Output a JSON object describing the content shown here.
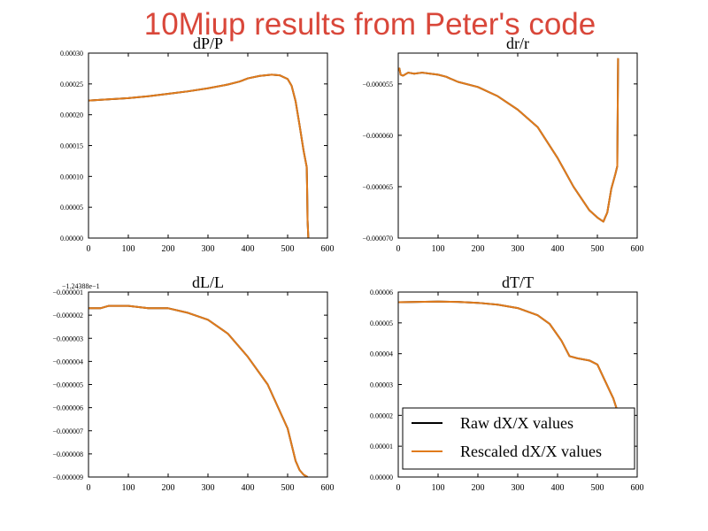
{
  "figure": {
    "suptitle": "10Miup results from Peter's code",
    "legend_placement": "lower-right of bottom-right panel",
    "colors": {
      "raw": "#000000",
      "rescaled": "#e07b1c",
      "suptitle": "#d9473a"
    }
  },
  "chart_data": [
    {
      "type": "line",
      "title": "dP/P",
      "xlabel": "",
      "ylabel": "",
      "xlim": [
        0,
        600
      ],
      "ylim": [
        0,
        0.0003
      ],
      "xticks": [
        0,
        100,
        200,
        300,
        400,
        500,
        600
      ],
      "xtick_labels": [
        "0",
        "100",
        "200",
        "300",
        "400",
        "500",
        "600"
      ],
      "yticks": [
        0,
        5e-05,
        0.0001,
        0.00015,
        0.0002,
        0.00025,
        0.0003
      ],
      "ytick_labels": [
        "0.00000",
        "0.00005",
        "0.00010",
        "0.00015",
        "0.00020",
        "0.00025",
        "0.00030"
      ],
      "offset_text": "",
      "grid": false,
      "series": [
        {
          "name": "Raw dX/X values",
          "x": [
            0,
            50,
            100,
            150,
            200,
            250,
            300,
            350,
            380,
            400,
            430,
            460,
            480,
            500,
            510,
            520,
            530,
            540,
            548,
            549,
            550,
            552
          ],
          "y": [
            0.000223,
            0.000225,
            0.000227,
            0.00023,
            0.000234,
            0.000238,
            0.000243,
            0.000249,
            0.000254,
            0.000259,
            0.000263,
            0.000265,
            0.000264,
            0.000258,
            0.000247,
            0.000222,
            0.000183,
            0.000142,
            0.000115,
            8e-05,
            3e-05,
            0
          ]
        },
        {
          "name": "Rescaled dX/X values",
          "x": [
            0,
            50,
            100,
            150,
            200,
            250,
            300,
            350,
            380,
            400,
            430,
            460,
            480,
            500,
            510,
            520,
            530,
            540,
            548,
            549,
            550,
            552
          ],
          "y": [
            0.000223,
            0.000225,
            0.000227,
            0.00023,
            0.000234,
            0.000238,
            0.000243,
            0.000249,
            0.000254,
            0.000259,
            0.000263,
            0.000265,
            0.000264,
            0.000258,
            0.000247,
            0.000222,
            0.000183,
            0.000142,
            0.000115,
            8e-05,
            3e-05,
            0
          ]
        }
      ]
    },
    {
      "type": "line",
      "title": "dr/r",
      "xlabel": "",
      "ylabel": "",
      "xlim": [
        0,
        600
      ],
      "ylim": [
        -7e-05,
        -5.2e-05
      ],
      "xticks": [
        0,
        100,
        200,
        300,
        400,
        500,
        600
      ],
      "xtick_labels": [
        "0",
        "100",
        "200",
        "300",
        "400",
        "500",
        "600"
      ],
      "yticks": [
        -7e-05,
        -6.5e-05,
        -6e-05,
        -5.5e-05
      ],
      "ytick_labels": [
        "−0.000070",
        "−0.000065",
        "−0.000060",
        "−0.000055"
      ],
      "offset_text": "",
      "grid": false,
      "series": [
        {
          "name": "Raw dX/X values",
          "x": [
            0,
            3,
            6,
            12,
            25,
            40,
            60,
            80,
            100,
            120,
            150,
            200,
            250,
            300,
            350,
            400,
            440,
            480,
            500,
            515,
            525,
            535,
            545,
            550,
            552
          ],
          "y": [
            -5.37e-05,
            -5.35e-05,
            -5.41e-05,
            -5.42e-05,
            -5.39e-05,
            -5.4e-05,
            -5.39e-05,
            -5.4e-05,
            -5.41e-05,
            -5.43e-05,
            -5.48e-05,
            -5.53e-05,
            -5.62e-05,
            -5.75e-05,
            -5.92e-05,
            -6.22e-05,
            -6.5e-05,
            -6.73e-05,
            -6.8e-05,
            -6.84e-05,
            -6.75e-05,
            -6.52e-05,
            -6.38e-05,
            -6.3e-05,
            -5.25e-05
          ]
        },
        {
          "name": "Rescaled dX/X values",
          "x": [
            0,
            3,
            6,
            12,
            25,
            40,
            60,
            80,
            100,
            120,
            150,
            200,
            250,
            300,
            350,
            400,
            440,
            480,
            500,
            515,
            525,
            535,
            545,
            550,
            552
          ],
          "y": [
            -5.37e-05,
            -5.35e-05,
            -5.41e-05,
            -5.42e-05,
            -5.39e-05,
            -5.4e-05,
            -5.39e-05,
            -5.4e-05,
            -5.41e-05,
            -5.43e-05,
            -5.48e-05,
            -5.53e-05,
            -5.62e-05,
            -5.75e-05,
            -5.92e-05,
            -6.22e-05,
            -6.5e-05,
            -6.73e-05,
            -6.8e-05,
            -6.84e-05,
            -6.75e-05,
            -6.52e-05,
            -6.38e-05,
            -6.3e-05,
            -5.25e-05
          ]
        }
      ]
    },
    {
      "type": "line",
      "title": "dL/L",
      "xlabel": "",
      "ylabel": "",
      "xlim": [
        0,
        600
      ],
      "ylim": [
        -9e-06,
        -1e-06
      ],
      "xticks": [
        0,
        100,
        200,
        300,
        400,
        500,
        600
      ],
      "xtick_labels": [
        "0",
        "100",
        "200",
        "300",
        "400",
        "500",
        "600"
      ],
      "yticks": [
        -9e-06,
        -8e-06,
        -7e-06,
        -6e-06,
        -5e-06,
        -4e-06,
        -3e-06,
        -2e-06,
        -1e-06
      ],
      "ytick_labels": [
        "−0.000009",
        "−0.000008",
        "−0.000007",
        "−0.000006",
        "−0.000005",
        "−0.000004",
        "−0.000003",
        "−0.000002",
        "−0.000001"
      ],
      "offset_text": "−1.24388e−1",
      "grid": false,
      "series": [
        {
          "name": "Raw dX/X values",
          "x": [
            0,
            15,
            30,
            50,
            100,
            150,
            200,
            250,
            300,
            350,
            400,
            450,
            500,
            520,
            530,
            540,
            550
          ],
          "y": [
            -1.7e-06,
            -1.7e-06,
            -1.7e-06,
            -1.6e-06,
            -1.6e-06,
            -1.7e-06,
            -1.7e-06,
            -1.9e-06,
            -2.2e-06,
            -2.8e-06,
            -3.8e-06,
            -5e-06,
            -6.9e-06,
            -8.3e-06,
            -8.7e-06,
            -8.9e-06,
            -9e-06
          ]
        },
        {
          "name": "Rescaled dX/X values",
          "x": [
            0,
            15,
            30,
            50,
            100,
            150,
            200,
            250,
            300,
            350,
            400,
            450,
            500,
            520,
            530,
            540,
            550
          ],
          "y": [
            -1.7e-06,
            -1.7e-06,
            -1.7e-06,
            -1.6e-06,
            -1.6e-06,
            -1.7e-06,
            -1.7e-06,
            -1.9e-06,
            -2.2e-06,
            -2.8e-06,
            -3.8e-06,
            -5e-06,
            -6.9e-06,
            -8.3e-06,
            -8.7e-06,
            -8.9e-06,
            -9e-06
          ]
        }
      ]
    },
    {
      "type": "line",
      "title": "dT/T",
      "xlabel": "",
      "ylabel": "",
      "xlim": [
        0,
        600
      ],
      "ylim": [
        0,
        6e-05
      ],
      "xticks": [
        0,
        100,
        200,
        300,
        400,
        500,
        600
      ],
      "xtick_labels": [
        "0",
        "100",
        "200",
        "300",
        "400",
        "500",
        "600"
      ],
      "yticks": [
        0,
        1e-05,
        2e-05,
        3e-05,
        4e-05,
        5e-05,
        6e-05
      ],
      "ytick_labels": [
        "0.00000",
        "0.00001",
        "0.00002",
        "0.00003",
        "0.00004",
        "0.00005",
        "0.00006"
      ],
      "offset_text": "",
      "grid": false,
      "legend": [
        "Raw dX/X values",
        "Rescaled dX/X values"
      ],
      "series": [
        {
          "name": "Raw dX/X values",
          "x": [
            0,
            50,
            100,
            150,
            200,
            250,
            300,
            350,
            380,
            410,
            430,
            450,
            480,
            500,
            520,
            540,
            550
          ],
          "y": [
            5.67e-05,
            5.68e-05,
            5.69e-05,
            5.68e-05,
            5.65e-05,
            5.59e-05,
            5.48e-05,
            5.25e-05,
            4.97e-05,
            4.42e-05,
            3.92e-05,
            3.85e-05,
            3.78e-05,
            3.65e-05,
            3.1e-05,
            2.55e-05,
            2.15e-05
          ]
        },
        {
          "name": "Rescaled dX/X values",
          "x": [
            0,
            50,
            100,
            150,
            200,
            250,
            300,
            350,
            380,
            410,
            430,
            450,
            480,
            500,
            520,
            540,
            550
          ],
          "y": [
            5.67e-05,
            5.68e-05,
            5.69e-05,
            5.68e-05,
            5.65e-05,
            5.59e-05,
            5.48e-05,
            5.25e-05,
            4.97e-05,
            4.42e-05,
            3.92e-05,
            3.85e-05,
            3.78e-05,
            3.65e-05,
            3.1e-05,
            2.55e-05,
            2.15e-05
          ]
        }
      ]
    }
  ]
}
